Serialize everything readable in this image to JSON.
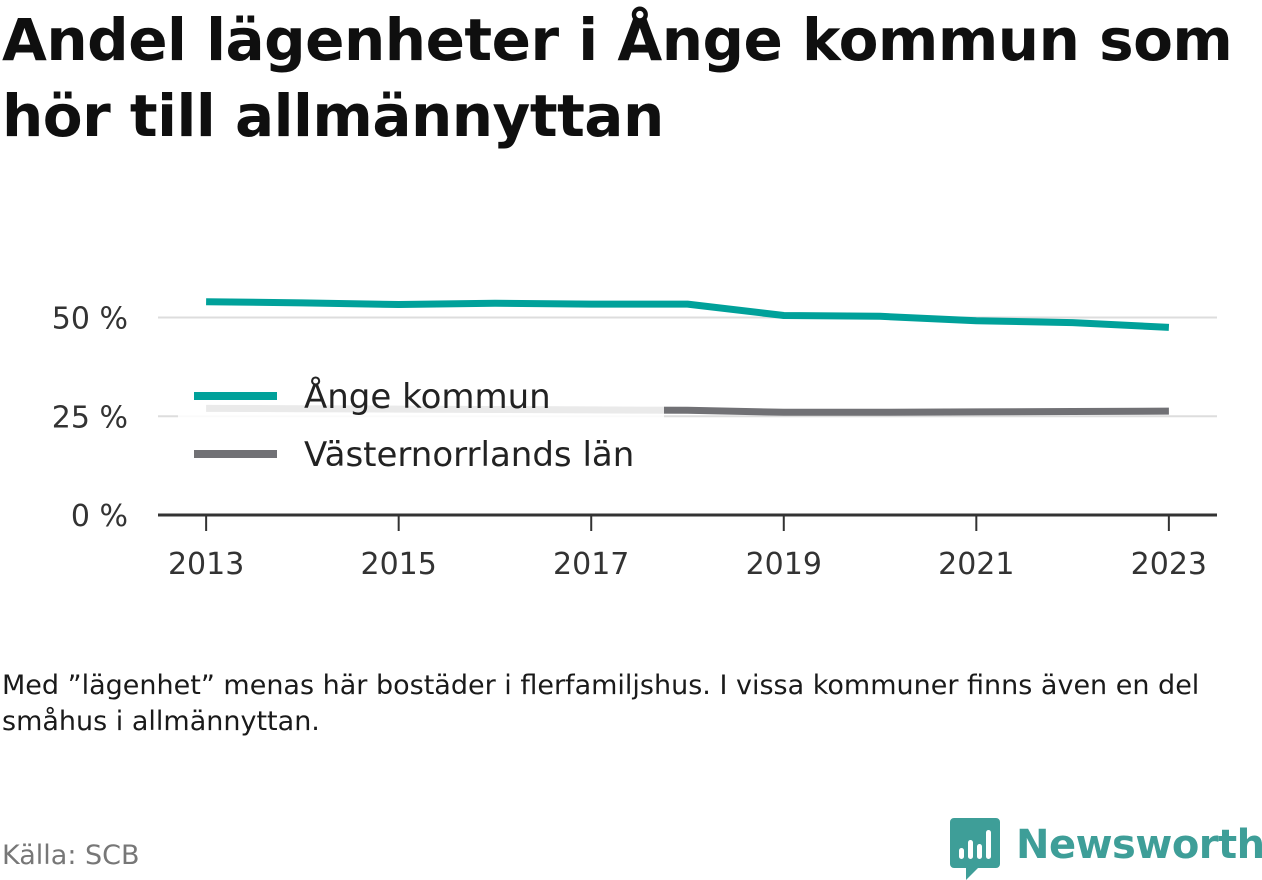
{
  "title": "Andel lägenheter i Ånge kommun som hör till allmännyttan",
  "note": "Med ”lägenhet” menas här bostäder i flerfamiljshus. I vissa kommuner finns även en del småhus i allmännyttan.",
  "source": "Källa: SCB",
  "brand": {
    "name": "Newsworthy",
    "icon": "newsworthy-logo-icon",
    "color": "#3e9e98"
  },
  "chart_data": {
    "type": "line",
    "x": [
      2013,
      2014,
      2015,
      2016,
      2017,
      2018,
      2019,
      2020,
      2021,
      2022,
      2023
    ],
    "x_ticks": [
      "2013",
      "2015",
      "2017",
      "2019",
      "2021",
      "2023"
    ],
    "y_ticks": [
      "0 %",
      "25 %",
      "50 %"
    ],
    "ylim": [
      0,
      55
    ],
    "xlim": [
      2012.5,
      2023.5
    ],
    "grid": true,
    "legend_position": "left-inside",
    "series": [
      {
        "name": "Ånge kommun",
        "color": "#00a19a",
        "values": [
          54.0,
          53.7,
          53.3,
          53.6,
          53.4,
          53.4,
          50.5,
          50.3,
          49.2,
          48.7,
          47.5
        ]
      },
      {
        "name": "Västernorrlands län",
        "color": "#717175",
        "values": [
          27.0,
          26.9,
          26.8,
          26.7,
          26.6,
          26.5,
          26.0,
          26.0,
          26.1,
          26.2,
          26.3
        ]
      }
    ]
  }
}
